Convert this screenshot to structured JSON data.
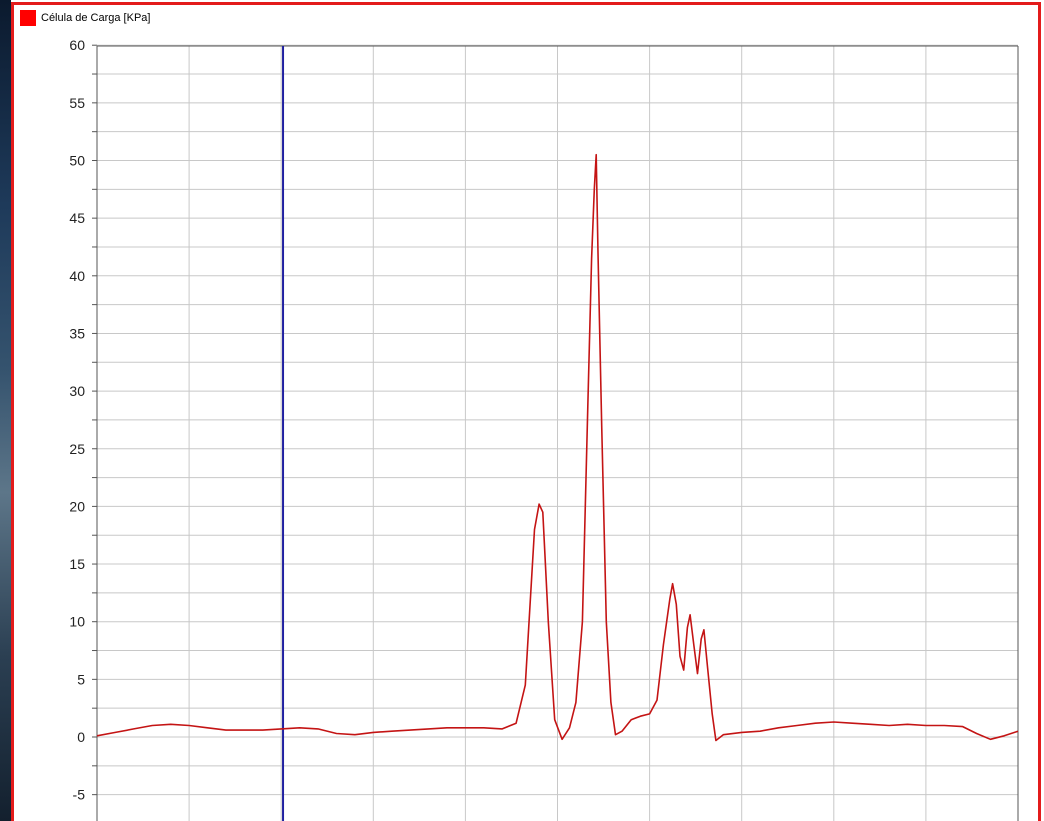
{
  "colors": {
    "frame_border": "#e31b1b",
    "legend_swatch": "#ff0000",
    "series_line": "#c41414",
    "cursor_line": "#2020a0",
    "grid_line": "#c8c8c8",
    "axis_line": "#555555"
  },
  "chart_data": {
    "type": "line",
    "legend_position": "top-left",
    "grid": true,
    "ylim": [
      -7,
      60
    ],
    "xlim": [
      0,
      100
    ],
    "yticks": [
      60,
      55,
      50,
      45,
      40,
      35,
      30,
      25,
      20,
      15,
      10,
      5,
      0,
      -5
    ],
    "cursor_x": 20.2,
    "series": [
      {
        "name": "Célula de Carga [KPa]",
        "points": [
          [
            0,
            0.1
          ],
          [
            2,
            0.4
          ],
          [
            4,
            0.7
          ],
          [
            6,
            1.0
          ],
          [
            8,
            1.1
          ],
          [
            10,
            1.0
          ],
          [
            12,
            0.8
          ],
          [
            14,
            0.6
          ],
          [
            16,
            0.6
          ],
          [
            18,
            0.6
          ],
          [
            20,
            0.7
          ],
          [
            22,
            0.8
          ],
          [
            24,
            0.7
          ],
          [
            26,
            0.3
          ],
          [
            28,
            0.2
          ],
          [
            30,
            0.4
          ],
          [
            32,
            0.5
          ],
          [
            34,
            0.6
          ],
          [
            36,
            0.7
          ],
          [
            38,
            0.8
          ],
          [
            40,
            0.8
          ],
          [
            42,
            0.8
          ],
          [
            44,
            0.7
          ],
          [
            45.5,
            1.2
          ],
          [
            46.5,
            4.5
          ],
          [
            47.5,
            18.0
          ],
          [
            48.0,
            20.2
          ],
          [
            48.4,
            19.5
          ],
          [
            49.0,
            10.0
          ],
          [
            49.7,
            1.5
          ],
          [
            50.5,
            -0.2
          ],
          [
            51.3,
            0.8
          ],
          [
            52.0,
            3.0
          ],
          [
            52.7,
            10.0
          ],
          [
            53.3,
            29.0
          ],
          [
            53.7,
            41.5
          ],
          [
            54.0,
            47.5
          ],
          [
            54.2,
            50.5
          ],
          [
            54.4,
            42.0
          ],
          [
            54.8,
            27.0
          ],
          [
            55.3,
            10.0
          ],
          [
            55.8,
            3.0
          ],
          [
            56.3,
            0.2
          ],
          [
            57.0,
            0.5
          ],
          [
            58.0,
            1.5
          ],
          [
            59.0,
            1.8
          ],
          [
            60.0,
            2.0
          ],
          [
            60.8,
            3.2
          ],
          [
            61.5,
            8.0
          ],
          [
            62.2,
            12.0
          ],
          [
            62.5,
            13.3
          ],
          [
            62.9,
            11.5
          ],
          [
            63.3,
            7.0
          ],
          [
            63.7,
            5.8
          ],
          [
            64.1,
            9.5
          ],
          [
            64.4,
            10.6
          ],
          [
            64.8,
            8.0
          ],
          [
            65.2,
            5.5
          ],
          [
            65.6,
            8.5
          ],
          [
            65.9,
            9.3
          ],
          [
            66.3,
            6.0
          ],
          [
            66.8,
            2.0
          ],
          [
            67.2,
            -0.3
          ],
          [
            68,
            0.2
          ],
          [
            70,
            0.4
          ],
          [
            72,
            0.5
          ],
          [
            74,
            0.8
          ],
          [
            76,
            1.0
          ],
          [
            78,
            1.2
          ],
          [
            80,
            1.3
          ],
          [
            82,
            1.2
          ],
          [
            84,
            1.1
          ],
          [
            86,
            1.0
          ],
          [
            88,
            1.1
          ],
          [
            90,
            1.0
          ],
          [
            92,
            1.0
          ],
          [
            94,
            0.9
          ],
          [
            95.5,
            0.3
          ],
          [
            97,
            -0.2
          ],
          [
            98.5,
            0.1
          ],
          [
            100,
            0.5
          ]
        ]
      }
    ]
  }
}
